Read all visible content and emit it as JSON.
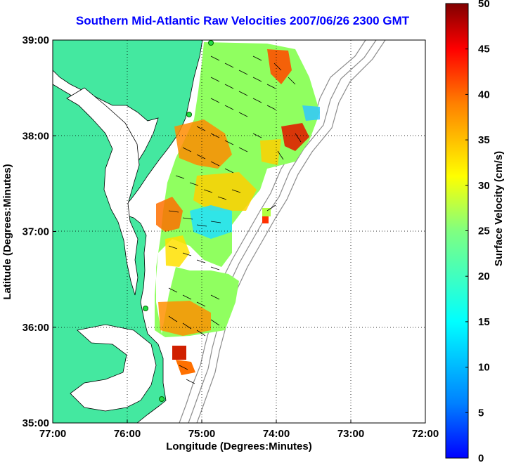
{
  "title": "Southern Mid-Atlantic Raw Velocities 2007/06/26 2300 GMT",
  "x_axis": {
    "label": "Longitude (Degrees:Minutes)",
    "ticks": [
      "77:00",
      "76:00",
      "75:00",
      "74:00",
      "73:00",
      "72:00"
    ]
  },
  "y_axis": {
    "label": "Latitude (Degrees:Minutes)",
    "ticks": [
      "39:00",
      "38:00",
      "37:00",
      "36:00",
      "35:00"
    ]
  },
  "colorbar": {
    "label": "Surface Velocity (cm/s)",
    "ticks": [
      "50",
      "45",
      "40",
      "35",
      "30",
      "25",
      "20",
      "15",
      "10",
      "5",
      "0"
    ],
    "min": 0,
    "max": 50,
    "colormap": "jet"
  },
  "colors": {
    "land": "#44e8a0",
    "coastline": "#000000",
    "bathymetry": "#8c8c8c",
    "station": "#22dd44",
    "title": "#0000ff"
  }
}
